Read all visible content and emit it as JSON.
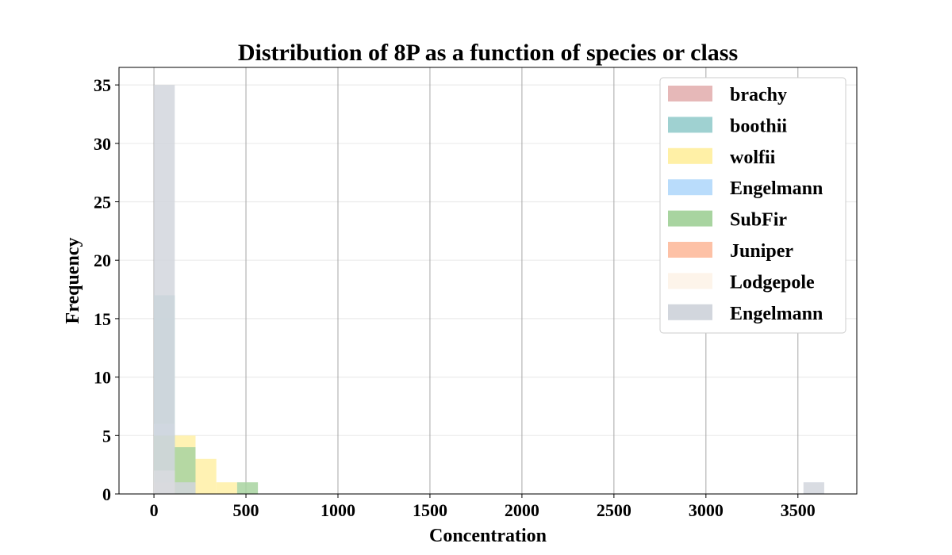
{
  "chart_data": {
    "type": "histogram",
    "title": "Distribution of 8P as a function of species or class",
    "xlabel": "Concentration",
    "ylabel": "Frequency",
    "xlim": [
      -190,
      3820
    ],
    "ylim": [
      0,
      36.5
    ],
    "xticks": [
      0,
      500,
      1000,
      1500,
      2000,
      2500,
      3000,
      3500
    ],
    "yticks": [
      0,
      5,
      10,
      15,
      20,
      25,
      30,
      35
    ],
    "grid": {
      "vertical": true,
      "horizontal": true
    },
    "legend_position": "top-right",
    "series": [
      {
        "name": "brachy",
        "color": "#e6b8b8",
        "bins": [
          {
            "x0": 0,
            "x1": 113,
            "count": 1
          }
        ]
      },
      {
        "name": "boothii",
        "color": "#9fd1d1",
        "bins": [
          {
            "x0": 0,
            "x1": 113,
            "count": 17
          }
        ]
      },
      {
        "name": "wolfii",
        "color": "#fff0a6",
        "bins": [
          {
            "x0": 0,
            "x1": 113,
            "count": 6
          },
          {
            "x0": 113,
            "x1": 226,
            "count": 5
          },
          {
            "x0": 226,
            "x1": 339,
            "count": 3
          },
          {
            "x0": 339,
            "x1": 452,
            "count": 1
          }
        ]
      },
      {
        "name": "Engelmann",
        "color": "#b9dcfb",
        "bins": [
          {
            "x0": 0,
            "x1": 113,
            "count": 6
          }
        ]
      },
      {
        "name": "SubFir",
        "color": "#a8d4a0",
        "bins": [
          {
            "x0": 0,
            "x1": 113,
            "count": 5
          },
          {
            "x0": 113,
            "x1": 226,
            "count": 4
          },
          {
            "x0": 452,
            "x1": 565,
            "count": 1
          }
        ]
      },
      {
        "name": "Juniper",
        "color": "#fdc1a6",
        "bins": [
          {
            "x0": 0,
            "x1": 113,
            "count": 1
          }
        ]
      },
      {
        "name": "Lodgepole",
        "color": "#fdf4ea",
        "bins": [
          {
            "x0": 0,
            "x1": 113,
            "count": 2
          }
        ]
      },
      {
        "name": "Engelmann",
        "color": "#d2d6dd",
        "bins": [
          {
            "x0": 0,
            "x1": 113,
            "count": 35
          },
          {
            "x0": 113,
            "x1": 226,
            "count": 1
          },
          {
            "x0": 3530,
            "x1": 3643,
            "count": 1
          }
        ]
      }
    ]
  }
}
